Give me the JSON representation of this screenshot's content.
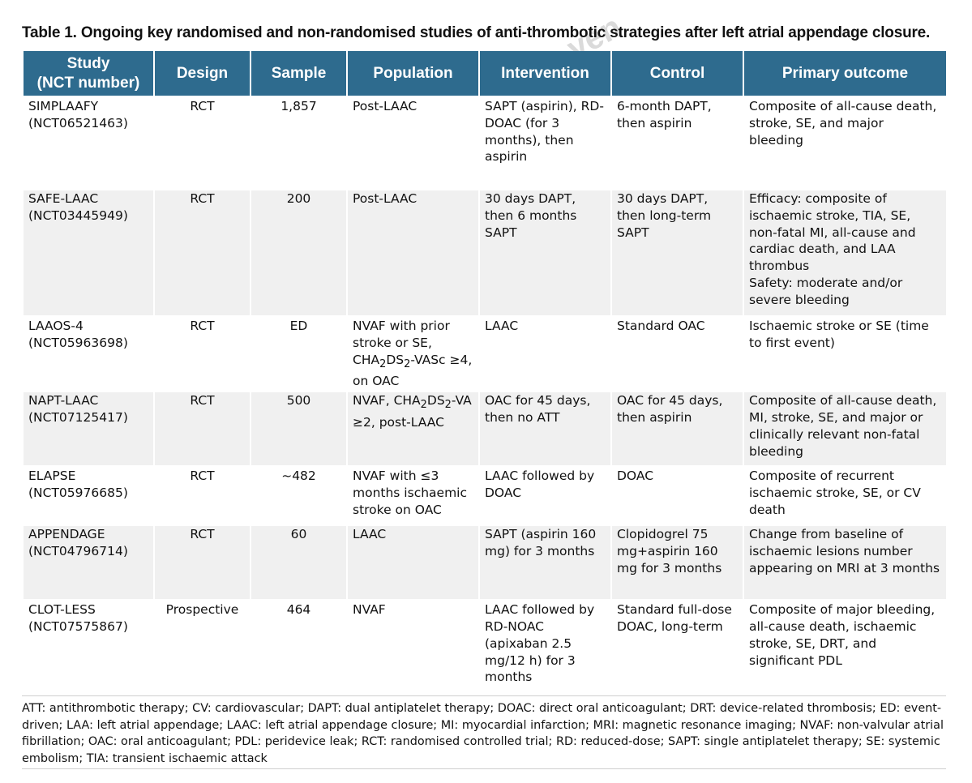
{
  "caption": "Table 1. Ongoing key randomised and non-randomised studies of anti-thrombotic strategies after left atrial appendage closure.",
  "watermark": "ven",
  "headers": {
    "study_line1": "Study",
    "study_line2": "(NCT number)",
    "design": "Design",
    "sample": "Sample",
    "population": "Population",
    "intervention": "Intervention",
    "control": "Control",
    "outcome": "Primary outcome"
  },
  "rows": [
    {
      "study": "SIMPLAAFY",
      "nct": "(NCT06521463)",
      "design": "RCT",
      "sample": "1,857",
      "population": "Post-LAAC",
      "intervention": "SAPT (aspirin), RD-DOAC (for 3 months), then aspirin",
      "control": "6-month DAPT, then aspirin",
      "outcome": "Composite of all-cause death, stroke, SE, and major bleeding"
    },
    {
      "study": "SAFE-LAAC",
      "nct": "(NCT03445949)",
      "design": "RCT",
      "sample": "200",
      "population": "Post-LAAC",
      "intervention": "30 days DAPT, then 6 months SAPT",
      "control": "30 days DAPT, then long-term SAPT",
      "outcome": "Efficacy: composite of ischaemic stroke, TIA, SE, non-fatal MI, all-cause and cardiac death, and LAA thrombus",
      "outcome2": "Safety: moderate and/or severe bleeding"
    },
    {
      "study": "LAAOS-4",
      "nct": "(NCT05963698)",
      "design": "RCT",
      "sample": "ED",
      "population_a": "NVAF with prior stroke or SE, CHA",
      "population_sub1": "2",
      "population_b": "DS",
      "population_sub2": "2",
      "population_c": "-VASc ≥4, on OAC",
      "intervention": "LAAC",
      "control": "Standard OAC",
      "outcome": "Ischaemic stroke or SE (time to first event)"
    },
    {
      "study": "NAPT-LAAC",
      "nct": "(NCT07125417)",
      "design": "RCT",
      "sample": "500",
      "population_a": "NVAF, CHA",
      "population_sub1": "2",
      "population_b": "DS",
      "population_sub2": "2",
      "population_c": "-VA ≥2, post-LAAC",
      "intervention": "OAC for 45 days, then no ATT",
      "control": "OAC for 45 days, then aspirin",
      "outcome": "Composite of all-cause death, MI, stroke, SE, and major or clinically relevant non-fatal bleeding"
    },
    {
      "study": "ELAPSE",
      "nct": "(NCT05976685)",
      "design": "RCT",
      "sample": "~482",
      "population": "NVAF with ≤3 months ischaemic stroke on OAC",
      "intervention": "LAAC followed by DOAC",
      "control": "DOAC",
      "outcome": "Composite of recurrent ischaemic stroke, SE, or CV death"
    },
    {
      "study": "APPENDAGE",
      "nct": "(NCT04796714)",
      "design": "RCT",
      "sample": "60",
      "population": "LAAC",
      "intervention": "SAPT (aspirin 160 mg) for 3 months",
      "control": "Clopidogrel 75 mg+aspirin 160 mg for 3 months",
      "outcome": "Change from baseline of ischaemic lesions number appearing on MRI at 3 months"
    },
    {
      "study": "CLOT-LESS",
      "nct": "(NCT07575867)",
      "design": "Prospective",
      "sample": "464",
      "population": "NVAF",
      "intervention": "LAAC followed by RD-NOAC (apixaban 2.5 mg/12 h) for 3 months",
      "control": "Standard full-dose DOAC, long-term",
      "outcome": "Composite of major bleeding, all-cause death, ischaemic stroke, SE, DRT, and significant PDL"
    }
  ],
  "footnote": "ATT: antithrombotic therapy; CV: cardiovascular; DAPT: dual antiplatelet therapy; DOAC: direct oral anticoagulant; DRT: device-related thrombosis; ED: event-driven; LAA: left atrial appendage; LAAC: left atrial appendage closure; MI: myocardial infarction; MRI: magnetic resonance imaging; NVAF: non-valvular atrial fibrillation; OAC: oral anticoagulant; PDL: peridevice leak; RCT: randomised controlled trial; RD: reduced-dose; SAPT: single antiplatelet therapy; SE: systemic embolism; TIA: transient ischaemic attack",
  "colors": {
    "header_bg": "#2e6b8e",
    "row_alt_bg": "#f0f0f0",
    "header_text": "#ffffff"
  }
}
